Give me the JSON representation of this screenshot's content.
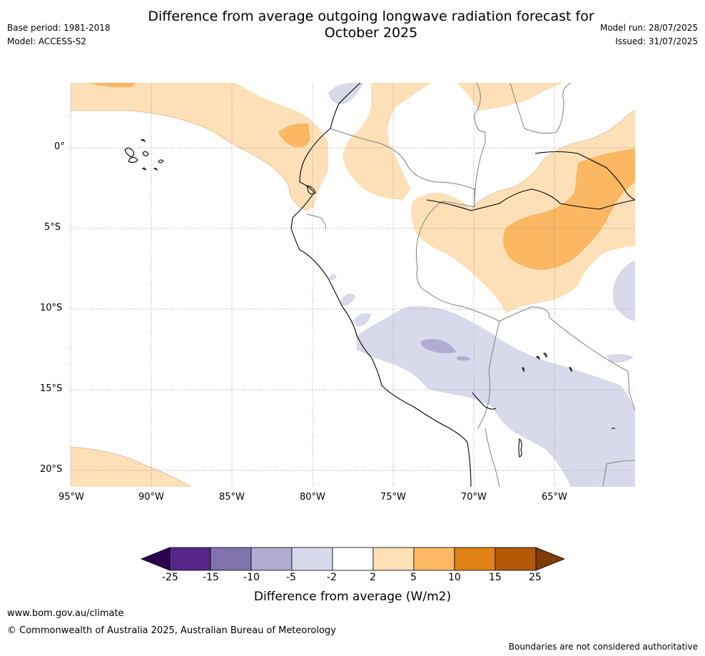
{
  "header": {
    "title_line1": "Difference from average outgoing longwave radiation forecast for",
    "title_line2": "October 2025",
    "base_period": "Base period: 1981-2018",
    "model": "Model: ACCESS-S2",
    "model_run": "Model run: 28/07/2025",
    "issued": "Issued: 31/07/2025"
  },
  "map": {
    "lat_labels": [
      "0°",
      "5°S",
      "10°S",
      "15°S",
      "20°S"
    ],
    "lon_labels": [
      "95°W",
      "90°W",
      "85°W",
      "80°W",
      "75°W",
      "70°W",
      "65°W"
    ],
    "colors": {
      "pos_2_5": "#fde0b7",
      "pos_5_10": "#fbb761",
      "neg_2_5": "#d9d9ec",
      "neg_5_10": "#b2abd2",
      "coast": "#000000",
      "border": "#808080"
    }
  },
  "colorbar": {
    "tick_labels": [
      "-25",
      "-15",
      "-10",
      "-5",
      "-2",
      "2",
      "5",
      "10",
      "15",
      "25"
    ],
    "colors": [
      "#2d004b",
      "#542788",
      "#8073ac",
      "#b2abd2",
      "#d8daeb",
      "#ffffff",
      "#fee0b6",
      "#fdb863",
      "#e08214",
      "#b35806",
      "#7f3b08"
    ],
    "title": "Difference from average (W/m2)"
  },
  "footer": {
    "website": "www.bom.gov.au/climate",
    "copyright": "© Commonwealth of Australia 2025, Australian Bureau of Meteorology",
    "disclaimer": "Boundaries are not considered authoritative"
  }
}
